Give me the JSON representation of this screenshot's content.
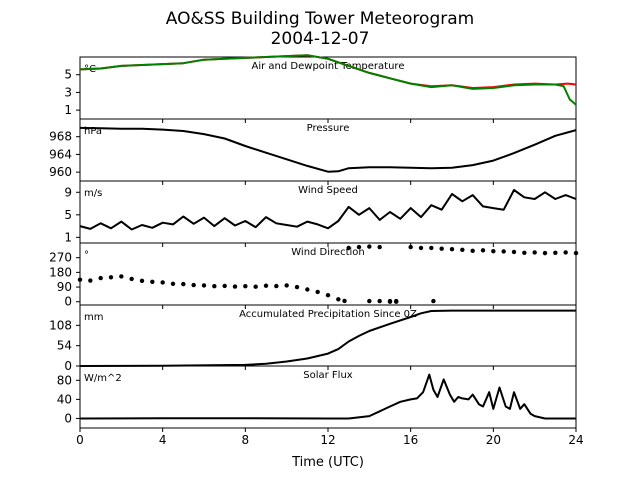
{
  "figure": {
    "title": "AO&SS Building Tower Meteorogram",
    "subtitle": "2004-12-07",
    "xlabel": "Time (UTC)"
  },
  "chart_data": [
    {
      "type": "line",
      "title": "Air and Dewpoint Temperature",
      "unit": "°C",
      "ylim": [
        0,
        7
      ],
      "yticks": [
        1,
        3,
        5
      ],
      "xlim": [
        0,
        24
      ],
      "xticks": [
        0,
        4,
        8,
        12,
        16,
        20,
        24
      ],
      "series": [
        {
          "color": "#ff0000",
          "x": [
            0,
            1,
            2,
            3,
            4,
            5,
            6,
            7,
            8,
            9,
            10,
            11,
            12,
            13,
            14,
            15,
            16,
            17,
            18,
            19,
            20,
            21,
            22,
            23,
            23.6,
            24
          ],
          "y": [
            5.6,
            5.7,
            6.0,
            6.1,
            6.2,
            6.3,
            6.7,
            6.8,
            6.9,
            7.0,
            7.1,
            7.2,
            6.8,
            6.0,
            5.2,
            4.6,
            4.0,
            3.7,
            3.8,
            3.5,
            3.6,
            3.9,
            4.0,
            3.9,
            4.0,
            3.9
          ]
        },
        {
          "color": "#008000",
          "x": [
            0,
            1,
            2,
            3,
            4,
            5,
            6,
            7,
            8,
            9,
            10,
            11,
            12,
            13,
            14,
            15,
            16,
            17,
            18,
            19,
            20,
            21,
            22,
            23,
            23.4,
            23.7,
            24
          ],
          "y": [
            5.6,
            5.7,
            6.0,
            6.1,
            6.2,
            6.3,
            6.7,
            6.8,
            6.9,
            7.0,
            7.1,
            7.2,
            6.8,
            6.0,
            5.2,
            4.6,
            4.0,
            3.6,
            3.8,
            3.4,
            3.5,
            3.8,
            3.9,
            3.9,
            3.7,
            2.2,
            1.6
          ]
        }
      ]
    },
    {
      "type": "line",
      "title": "Pressure",
      "unit": "hPa",
      "ylim": [
        958,
        972
      ],
      "yticks": [
        960,
        964,
        968
      ],
      "xlim": [
        0,
        24
      ],
      "series": [
        {
          "color": "#000000",
          "x": [
            0,
            1,
            2,
            3,
            4,
            5,
            6,
            7,
            8,
            9,
            10,
            11,
            12,
            12.5,
            13,
            14,
            15,
            16,
            17,
            18,
            19,
            20,
            21,
            22,
            23,
            24
          ],
          "y": [
            970.0,
            969.9,
            969.8,
            969.8,
            969.6,
            969.3,
            968.6,
            967.6,
            965.9,
            964.4,
            962.9,
            961.4,
            960.1,
            960.2,
            960.9,
            961.1,
            961.1,
            961.0,
            960.9,
            961.0,
            961.6,
            962.6,
            964.3,
            966.2,
            968.2,
            969.5
          ]
        }
      ]
    },
    {
      "type": "line",
      "title": "Wind Speed",
      "unit": "m/s",
      "ylim": [
        0,
        11
      ],
      "yticks": [
        1,
        5,
        9
      ],
      "xlim": [
        0,
        24
      ],
      "series": [
        {
          "color": "#000000",
          "x": [
            0,
            0.5,
            1,
            1.5,
            2,
            2.5,
            3,
            3.5,
            4,
            4.5,
            5,
            5.5,
            6,
            6.5,
            7,
            7.5,
            8,
            8.5,
            9,
            9.5,
            10,
            10.5,
            11,
            11.5,
            12,
            12.5,
            13,
            13.5,
            14,
            14.5,
            15,
            15.5,
            16,
            16.5,
            17,
            17.5,
            18,
            18.5,
            19,
            19.5,
            20,
            20.5,
            21,
            21.5,
            22,
            22.5,
            23,
            23.5,
            24
          ],
          "y": [
            3,
            2.5,
            3.5,
            2.6,
            3.8,
            2.4,
            3.2,
            2.7,
            3.6,
            3.3,
            4.7,
            3.4,
            4.5,
            3.0,
            4.4,
            3.1,
            3.9,
            2.8,
            4.6,
            3.5,
            3.2,
            2.9,
            3.8,
            3.3,
            2.6,
            3.9,
            6.4,
            5.0,
            6.2,
            4.1,
            5.5,
            4.3,
            6.2,
            4.6,
            6.7,
            5.9,
            8.7,
            7.4,
            8.5,
            6.5,
            6.2,
            5.9,
            9.4,
            8.1,
            7.8,
            9.0,
            7.8,
            8.5,
            7.8
          ]
        }
      ]
    },
    {
      "type": "scatter",
      "title": "Wind Direction",
      "unit": "°",
      "ylim": [
        -20,
        360
      ],
      "yticks": [
        0,
        90,
        180,
        270
      ],
      "xlim": [
        0,
        24
      ],
      "series": [
        {
          "color": "#000000",
          "x": [
            0,
            0.5,
            1,
            1.5,
            2,
            2.5,
            3,
            3.5,
            4,
            4.5,
            5,
            5.5,
            6,
            6.5,
            7,
            7.5,
            8,
            8.5,
            9,
            9.5,
            10,
            10.5,
            11,
            11.5,
            12,
            12.5,
            12.8,
            13,
            13.5,
            14,
            14.5,
            15,
            15.3,
            16,
            16.5,
            17,
            17.5,
            18,
            18.5,
            19,
            19.5,
            20,
            20.5,
            21,
            21.5,
            22,
            22.5,
            23,
            23.5,
            24
          ],
          "y": [
            135,
            130,
            145,
            150,
            155,
            140,
            128,
            122,
            118,
            110,
            108,
            102,
            100,
            95,
            97,
            93,
            95,
            92,
            98,
            96,
            100,
            90,
            75,
            60,
            40,
            15,
            5,
            330,
            335,
            338,
            335,
            0,
            0,
            335,
            330,
            330,
            325,
            322,
            318,
            312,
            315,
            310,
            308,
            305,
            300,
            302,
            298,
            300,
            302,
            298
          ]
        },
        {
          "color": "#000000",
          "x": [
            14,
            14.5,
            15,
            15.3,
            17.1
          ],
          "y": [
            4,
            4,
            4,
            4,
            4
          ]
        }
      ]
    },
    {
      "type": "line",
      "title": "Accumulated Precipitation Since 0Z",
      "unit": "mm",
      "ylim": [
        0,
        162
      ],
      "yticks": [
        0,
        54,
        108
      ],
      "xlim": [
        0,
        24
      ],
      "series": [
        {
          "color": "#000000",
          "x": [
            0,
            4,
            8,
            9,
            10,
            11,
            12,
            12.5,
            13,
            13.5,
            14,
            15,
            16,
            16.5,
            17,
            18,
            24
          ],
          "y": [
            0,
            0.5,
            3,
            6,
            12,
            20,
            33,
            45,
            65,
            80,
            93,
            112,
            130,
            140,
            146,
            147,
            147
          ]
        }
      ]
    },
    {
      "type": "line",
      "title": "Solar Flux",
      "unit": "W/m^2",
      "ylim": [
        -20,
        110
      ],
      "yticks": [
        0,
        40,
        80
      ],
      "xlim": [
        0,
        24
      ],
      "series": [
        {
          "color": "#000000",
          "x": [
            0,
            4,
            8,
            12,
            13,
            14,
            14.5,
            15,
            15.5,
            16,
            16.3,
            16.6,
            16.9,
            17.1,
            17.3,
            17.6,
            17.9,
            18.1,
            18.3,
            18.5,
            18.8,
            19.0,
            19.3,
            19.5,
            19.8,
            20.0,
            20.3,
            20.6,
            20.8,
            21.0,
            21.3,
            21.5,
            21.8,
            22,
            22.5,
            23,
            24
          ],
          "y": [
            0,
            0.5,
            0.5,
            0,
            0,
            5,
            15,
            25,
            35,
            40,
            42,
            55,
            92,
            60,
            45,
            82,
            50,
            35,
            45,
            42,
            40,
            50,
            30,
            25,
            55,
            20,
            65,
            25,
            20,
            55,
            20,
            30,
            10,
            5,
            0,
            0,
            0
          ]
        }
      ]
    }
  ]
}
